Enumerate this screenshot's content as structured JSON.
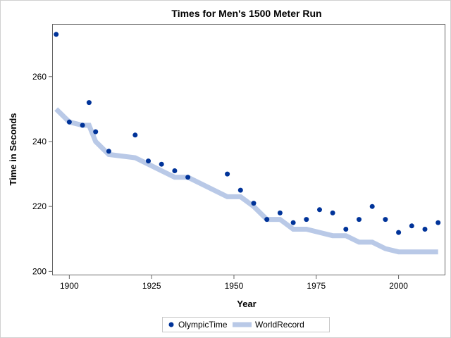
{
  "chart_data": {
    "type": "scatter",
    "title": "Times for Men's 1500 Meter Run",
    "xlabel": "Year",
    "ylabel": "Time in Seconds",
    "xlim": [
      1895,
      2014
    ],
    "ylim": [
      199,
      276
    ],
    "xticks": [
      1900,
      1925,
      1950,
      1975,
      2000
    ],
    "yticks": [
      200,
      220,
      240,
      260
    ],
    "grid": false,
    "legend_position": "bottom-center",
    "series": [
      {
        "name": "OlympicTime",
        "kind": "scatter",
        "color": "#003399",
        "points": [
          {
            "x": 1896,
            "y": 273
          },
          {
            "x": 1900,
            "y": 246
          },
          {
            "x": 1904,
            "y": 245
          },
          {
            "x": 1906,
            "y": 252
          },
          {
            "x": 1908,
            "y": 243
          },
          {
            "x": 1912,
            "y": 237
          },
          {
            "x": 1920,
            "y": 242
          },
          {
            "x": 1924,
            "y": 234
          },
          {
            "x": 1928,
            "y": 233
          },
          {
            "x": 1932,
            "y": 231
          },
          {
            "x": 1936,
            "y": 229
          },
          {
            "x": 1948,
            "y": 230
          },
          {
            "x": 1952,
            "y": 225
          },
          {
            "x": 1956,
            "y": 221
          },
          {
            "x": 1960,
            "y": 216
          },
          {
            "x": 1964,
            "y": 218
          },
          {
            "x": 1968,
            "y": 215
          },
          {
            "x": 1972,
            "y": 216
          },
          {
            "x": 1976,
            "y": 219
          },
          {
            "x": 1980,
            "y": 218
          },
          {
            "x": 1984,
            "y": 213
          },
          {
            "x": 1988,
            "y": 216
          },
          {
            "x": 1992,
            "y": 220
          },
          {
            "x": 1996,
            "y": 216
          },
          {
            "x": 2000,
            "y": 212
          },
          {
            "x": 2004,
            "y": 214
          },
          {
            "x": 2008,
            "y": 213
          },
          {
            "x": 2012,
            "y": 215
          }
        ]
      },
      {
        "name": "WorldRecord",
        "kind": "step-line",
        "color": "#b9c9e7",
        "points": [
          {
            "x": 1896,
            "y": 250
          },
          {
            "x": 1900,
            "y": 246
          },
          {
            "x": 1904,
            "y": 245
          },
          {
            "x": 1906,
            "y": 245
          },
          {
            "x": 1908,
            "y": 240
          },
          {
            "x": 1912,
            "y": 236
          },
          {
            "x": 1920,
            "y": 235
          },
          {
            "x": 1924,
            "y": 233
          },
          {
            "x": 1928,
            "y": 231
          },
          {
            "x": 1932,
            "y": 229
          },
          {
            "x": 1936,
            "y": 229
          },
          {
            "x": 1948,
            "y": 223
          },
          {
            "x": 1952,
            "y": 223
          },
          {
            "x": 1956,
            "y": 220
          },
          {
            "x": 1960,
            "y": 216
          },
          {
            "x": 1964,
            "y": 216
          },
          {
            "x": 1968,
            "y": 213
          },
          {
            "x": 1972,
            "y": 213
          },
          {
            "x": 1976,
            "y": 212
          },
          {
            "x": 1980,
            "y": 211
          },
          {
            "x": 1984,
            "y": 211
          },
          {
            "x": 1988,
            "y": 209
          },
          {
            "x": 1992,
            "y": 209
          },
          {
            "x": 1996,
            "y": 207
          },
          {
            "x": 2000,
            "y": 206
          },
          {
            "x": 2004,
            "y": 206
          },
          {
            "x": 2008,
            "y": 206
          },
          {
            "x": 2012,
            "y": 206
          }
        ]
      }
    ]
  }
}
